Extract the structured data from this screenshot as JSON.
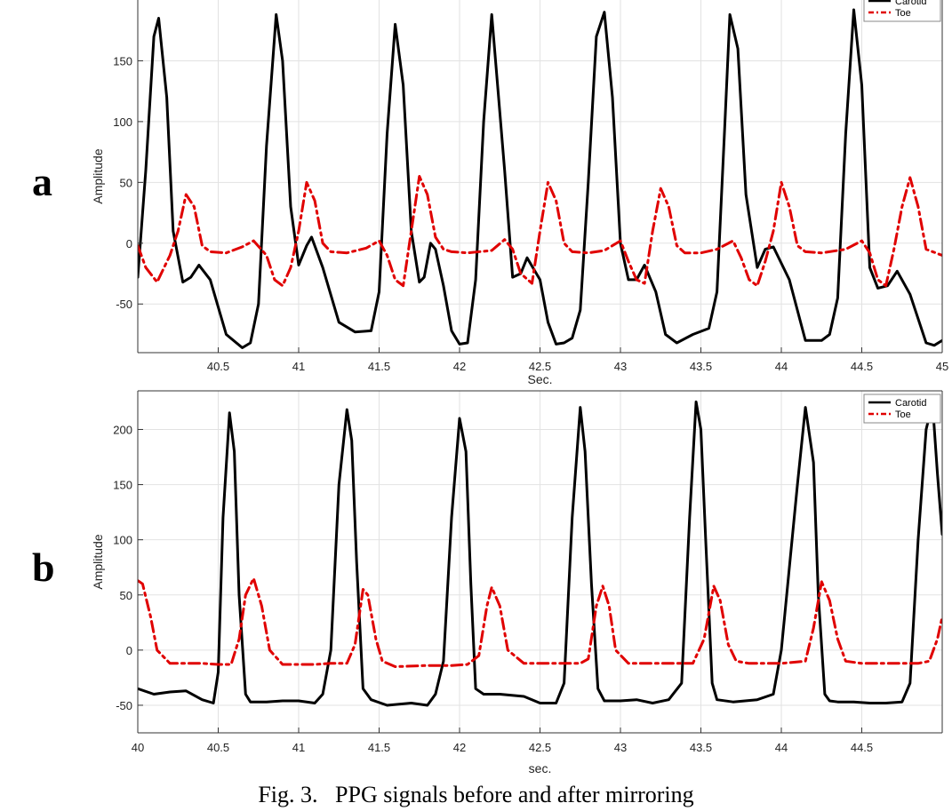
{
  "caption": "Fig. 3.   PPG signals before and after mirroring",
  "chart_data": [
    {
      "type": "line",
      "panel_label": "a",
      "xlabel": "Sec.",
      "ylabel": "Amplitude",
      "xlim": [
        40,
        45
      ],
      "ylim": [
        -90,
        200
      ],
      "xticks": [
        40.5,
        41,
        41.5,
        42,
        42.5,
        43,
        43.5,
        44,
        44.5,
        45
      ],
      "xtick_labels": [
        "40.5",
        "41",
        "41.5",
        "42",
        "42.5",
        "43",
        "43.5",
        "44",
        "44.5",
        "45"
      ],
      "yticks": [
        -50,
        0,
        50,
        100,
        150
      ],
      "ytick_labels": [
        "-50",
        "0",
        "50",
        "100",
        "150"
      ],
      "grid": true,
      "legend_position": "top-right",
      "series": [
        {
          "name": "Carotid",
          "color": "#000000",
          "style": "solid",
          "x": [
            40.0,
            40.05,
            40.1,
            40.13,
            40.18,
            40.22,
            40.28,
            40.33,
            40.38,
            40.45,
            40.55,
            40.65,
            40.7,
            40.75,
            40.8,
            40.86,
            40.9,
            40.95,
            41.0,
            41.05,
            41.08,
            41.15,
            41.25,
            41.35,
            41.45,
            41.5,
            41.55,
            41.6,
            41.65,
            41.7,
            41.75,
            41.78,
            41.82,
            41.85,
            41.9,
            41.95,
            42.0,
            42.05,
            42.1,
            42.15,
            42.2,
            42.28,
            42.33,
            42.38,
            42.42,
            42.5,
            42.55,
            42.6,
            42.65,
            42.7,
            42.75,
            42.8,
            42.85,
            42.9,
            42.95,
            43.0,
            43.05,
            43.1,
            43.15,
            43.22,
            43.28,
            43.35,
            43.45,
            43.55,
            43.6,
            43.65,
            43.68,
            43.73,
            43.78,
            43.85,
            43.9,
            43.95,
            44.05,
            44.15,
            44.25,
            44.3,
            44.35,
            44.4,
            44.45,
            44.5,
            44.55,
            44.6,
            44.66,
            44.72,
            44.8,
            44.9,
            44.95,
            45.0
          ],
          "y": [
            -28,
            60,
            170,
            185,
            120,
            10,
            -32,
            -28,
            -18,
            -30,
            -75,
            -86,
            -82,
            -50,
            80,
            188,
            150,
            30,
            -18,
            -2,
            5,
            -20,
            -65,
            -73,
            -72,
            -40,
            90,
            180,
            130,
            10,
            -32,
            -28,
            0,
            -5,
            -35,
            -72,
            -83,
            -82,
            -30,
            100,
            188,
            60,
            -28,
            -25,
            -12,
            -30,
            -65,
            -83,
            -82,
            -78,
            -55,
            50,
            170,
            190,
            120,
            0,
            -30,
            -30,
            -18,
            -40,
            -75,
            -82,
            -75,
            -70,
            -40,
            100,
            188,
            160,
            40,
            -20,
            -5,
            -3,
            -30,
            -80,
            -80,
            -75,
            -45,
            90,
            192,
            130,
            -20,
            -37,
            -35,
            -23,
            -42,
            -82,
            -84,
            -80
          ]
        },
        {
          "name": "Toe",
          "color": "#e00000",
          "style": "dashdot",
          "x": [
            40.0,
            40.05,
            40.12,
            40.2,
            40.25,
            40.3,
            40.35,
            40.4,
            40.45,
            40.55,
            40.65,
            40.72,
            40.8,
            40.85,
            40.9,
            40.95,
            41.0,
            41.05,
            41.1,
            41.15,
            41.2,
            41.3,
            41.42,
            41.5,
            41.55,
            41.6,
            41.65,
            41.7,
            41.75,
            41.8,
            41.85,
            41.9,
            41.95,
            42.05,
            42.2,
            42.28,
            42.33,
            42.38,
            42.45,
            42.5,
            42.55,
            42.6,
            42.65,
            42.7,
            42.8,
            42.9,
            43.0,
            43.05,
            43.1,
            43.15,
            43.2,
            43.25,
            43.3,
            43.35,
            43.4,
            43.5,
            43.6,
            43.7,
            43.75,
            43.8,
            43.85,
            43.9,
            43.95,
            44.0,
            44.05,
            44.1,
            44.15,
            44.25,
            44.4,
            44.5,
            44.55,
            44.6,
            44.65,
            44.7,
            44.75,
            44.8,
            44.85,
            44.9,
            45.0
          ],
          "y": [
            -2,
            -20,
            -32,
            -10,
            10,
            40,
            30,
            -2,
            -7,
            -8,
            -3,
            2,
            -10,
            -30,
            -35,
            -20,
            10,
            50,
            35,
            0,
            -7,
            -8,
            -4,
            2,
            -10,
            -30,
            -35,
            10,
            55,
            40,
            5,
            -5,
            -7,
            -8,
            -6,
            3,
            -5,
            -25,
            -33,
            10,
            50,
            35,
            0,
            -7,
            -8,
            -6,
            2,
            -15,
            -30,
            -33,
            10,
            45,
            30,
            -2,
            -8,
            -8,
            -5,
            2,
            -12,
            -30,
            -35,
            -15,
            10,
            50,
            30,
            -2,
            -7,
            -8,
            -5,
            2,
            -8,
            -30,
            -35,
            -5,
            30,
            54,
            30,
            -5,
            -10
          ]
        }
      ]
    },
    {
      "type": "line",
      "panel_label": "b",
      "xlabel": "sec.",
      "ylabel": "Amplitude",
      "xlim": [
        40,
        45
      ],
      "ylim": [
        -75,
        235
      ],
      "xticks": [
        40,
        40.5,
        41,
        41.5,
        42,
        42.5,
        43,
        43.5,
        44,
        44.5
      ],
      "xtick_labels": [
        "40",
        "40.5",
        "41",
        "41.5",
        "42",
        "42.5",
        "43",
        "43.5",
        "44",
        "44.5"
      ],
      "yticks": [
        -50,
        0,
        50,
        100,
        150,
        200
      ],
      "ytick_labels": [
        "-50",
        "0",
        "50",
        "100",
        "150",
        "200"
      ],
      "grid": true,
      "legend_position": "top-right",
      "series": [
        {
          "name": "Carotid",
          "color": "#000000",
          "style": "solid",
          "x": [
            40.0,
            40.1,
            40.2,
            40.3,
            40.4,
            40.47,
            40.5,
            40.53,
            40.57,
            40.6,
            40.63,
            40.67,
            40.7,
            40.8,
            40.9,
            41.0,
            41.1,
            41.15,
            41.2,
            41.25,
            41.3,
            41.33,
            41.36,
            41.4,
            41.45,
            41.55,
            41.7,
            41.8,
            41.85,
            41.9,
            41.95,
            42.0,
            42.04,
            42.07,
            42.1,
            42.15,
            42.25,
            42.4,
            42.5,
            42.6,
            42.65,
            42.7,
            42.75,
            42.78,
            42.82,
            42.86,
            42.9,
            43.0,
            43.1,
            43.2,
            43.3,
            43.38,
            43.43,
            43.47,
            43.5,
            43.53,
            43.57,
            43.6,
            43.7,
            43.85,
            43.95,
            44.0,
            44.1,
            44.15,
            44.2,
            44.23,
            44.27,
            44.3,
            44.35,
            44.45,
            44.55,
            44.65,
            44.75,
            44.8,
            44.85,
            44.9,
            44.94,
            44.97,
            45.0
          ],
          "y": [
            -35,
            -40,
            -38,
            -37,
            -45,
            -48,
            -20,
            120,
            215,
            180,
            50,
            -40,
            -47,
            -47,
            -46,
            -46,
            -48,
            -40,
            0,
            150,
            218,
            190,
            80,
            -35,
            -45,
            -50,
            -48,
            -50,
            -40,
            -10,
            120,
            210,
            180,
            60,
            -35,
            -40,
            -40,
            -42,
            -48,
            -48,
            -30,
            120,
            220,
            180,
            60,
            -35,
            -46,
            -46,
            -45,
            -48,
            -45,
            -30,
            120,
            225,
            200,
            100,
            -30,
            -45,
            -47,
            -45,
            -40,
            0,
            150,
            220,
            170,
            50,
            -40,
            -46,
            -47,
            -47,
            -48,
            -48,
            -47,
            -30,
            100,
            200,
            224,
            160,
            105
          ]
        },
        {
          "name": "Toe",
          "color": "#e00000",
          "style": "dashdot",
          "x": [
            40.0,
            40.03,
            40.08,
            40.12,
            40.2,
            40.3,
            40.4,
            40.5,
            40.58,
            40.63,
            40.67,
            40.72,
            40.77,
            40.82,
            40.9,
            41.0,
            41.1,
            41.2,
            41.3,
            41.35,
            41.4,
            41.43,
            41.48,
            41.52,
            41.6,
            41.8,
            41.95,
            42.05,
            42.12,
            42.17,
            42.2,
            42.25,
            42.3,
            42.4,
            42.6,
            42.75,
            42.8,
            42.85,
            42.89,
            42.93,
            42.97,
            43.05,
            43.25,
            43.45,
            43.52,
            43.58,
            43.62,
            43.67,
            43.72,
            43.8,
            44.0,
            44.15,
            44.2,
            44.25,
            44.3,
            44.35,
            44.4,
            44.5,
            44.7,
            44.85,
            44.92,
            44.97,
            45.0
          ],
          "y": [
            63,
            60,
            30,
            0,
            -12,
            -12,
            -12,
            -13,
            -13,
            10,
            50,
            65,
            40,
            0,
            -13,
            -13,
            -13,
            -12,
            -12,
            5,
            55,
            50,
            10,
            -10,
            -15,
            -14,
            -14,
            -13,
            -5,
            40,
            57,
            40,
            0,
            -12,
            -12,
            -12,
            -8,
            40,
            58,
            40,
            0,
            -12,
            -12,
            -12,
            10,
            58,
            45,
            5,
            -10,
            -12,
            -12,
            -10,
            20,
            62,
            45,
            10,
            -10,
            -12,
            -12,
            -12,
            -10,
            10,
            30
          ]
        }
      ]
    }
  ]
}
